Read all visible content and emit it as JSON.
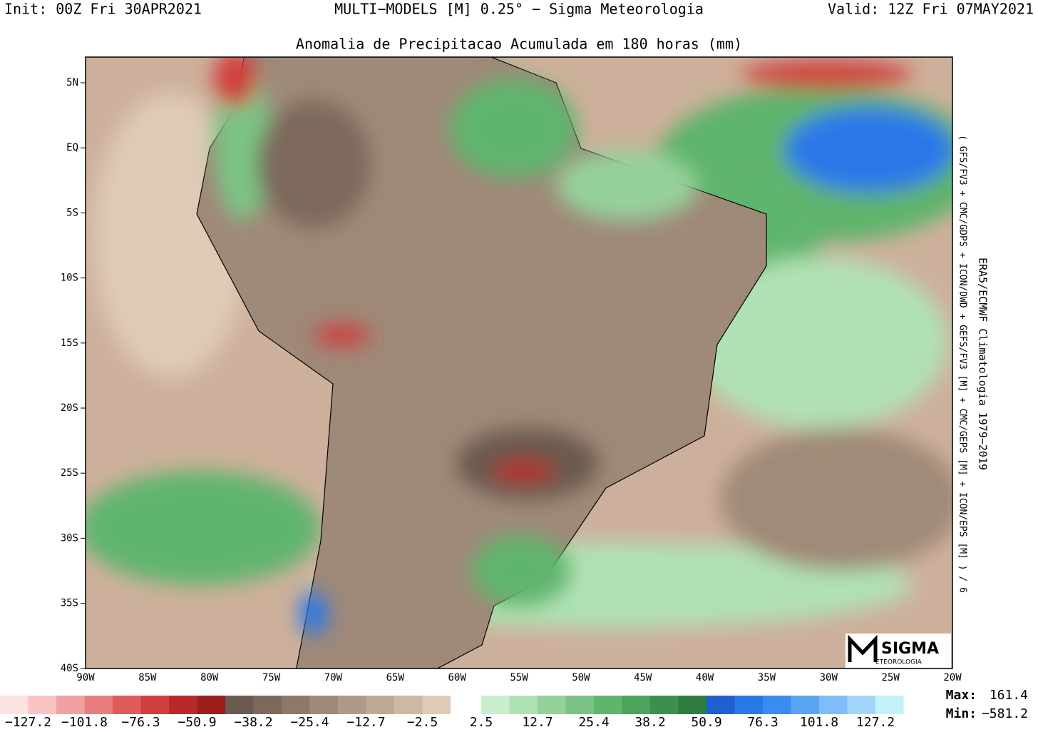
{
  "header": {
    "init": "Init: 00Z Fri 30APR2021",
    "model": "MULTI−MODELS [M] 0.25° − Sigma Meteorologia",
    "valid": "Valid: 12Z Fri 07MAY2021",
    "title": "Anomalia de Precipitacao Acumulada em 180 horas (mm)"
  },
  "side": {
    "climatology": "ERA5/ECMWF Climatologia 1979−2019",
    "ensemble": "( GFS/FV3 + CMC/GDPS + ICON/DWD + GEFS/FV3 [M] + CMC/GEPS [M] + ICON/EPS [M] ) / 6"
  },
  "map": {
    "lat_labels": [
      "5N",
      "EQ",
      "5S",
      "10S",
      "15S",
      "20S",
      "25S",
      "30S",
      "35S",
      "40S"
    ],
    "lon_labels": [
      "90W",
      "85W",
      "80W",
      "75W",
      "70W",
      "65W",
      "60W",
      "55W",
      "50W",
      "45W",
      "40W",
      "35W",
      "30W",
      "25W",
      "20W"
    ]
  },
  "colorbar": {
    "negative": {
      "colors": [
        "#fde2e2",
        "#f8c4c4",
        "#f0a2a2",
        "#e87e7e",
        "#de5c5c",
        "#d03e3e",
        "#b82a2a",
        "#9c1e1e",
        "#6a5a50",
        "#7c695c",
        "#8e7969",
        "#9f8978",
        "#b09986",
        "#c0a994",
        "#cfb8a3",
        "#dfcab6"
      ],
      "labels": [
        "−127.2",
        "−101.8",
        "−76.3",
        "−50.9",
        "−38.2",
        "−25.4",
        "−12.7",
        "−2.5"
      ]
    },
    "positive": {
      "colors": [
        "#c9edcd",
        "#b0e1b4",
        "#95d19b",
        "#7bc485",
        "#60b56e",
        "#4ba55c",
        "#3d8f4d",
        "#2f7b41",
        "#1f5fd0",
        "#2a78e8",
        "#3b8cf0",
        "#5aa4f4",
        "#80bcf8",
        "#a2d6f8",
        "#c2f2f8"
      ],
      "labels": [
        "2.5",
        "12.7",
        "25.4",
        "38.2",
        "50.9",
        "76.3",
        "101.8",
        "127.2"
      ]
    }
  },
  "stats": {
    "max_label": "Max:",
    "max": "161.4",
    "min_label": "Min:",
    "min": "−581.2"
  },
  "logo": {
    "name": "SIGMA",
    "sub": "ETEOROLOGIA"
  }
}
